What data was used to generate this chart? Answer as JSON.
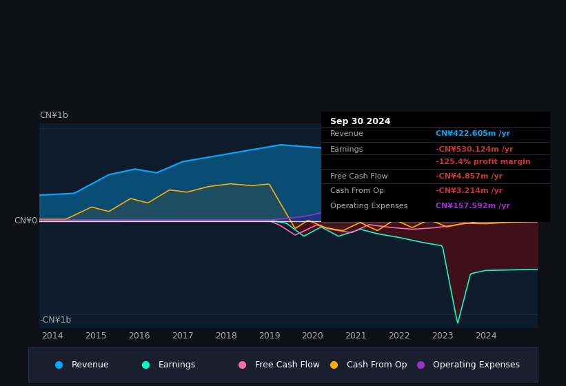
{
  "bg_color": "#0d1117",
  "plot_bg_color": "#0d1b2a",
  "title": "Sep 30 2024",
  "ylabel_top": "CN¥1b",
  "ylabel_bottom": "-CN¥1b",
  "ylabel_zero": "CN¥0",
  "colors": {
    "revenue": "#00aaff",
    "earnings": "#00ffcc",
    "free_cash_flow": "#ff69b4",
    "cash_from_op": "#ffaa00",
    "operating_expenses": "#9933cc"
  },
  "legend": [
    {
      "label": "Revenue",
      "color": "#00aaff"
    },
    {
      "label": "Earnings",
      "color": "#00ffcc"
    },
    {
      "label": "Free Cash Flow",
      "color": "#ff69b4"
    },
    {
      "label": "Cash From Op",
      "color": "#ffaa00"
    },
    {
      "label": "Operating Expenses",
      "color": "#9933cc"
    }
  ],
  "info_rows": [
    {
      "label": "Revenue",
      "value": "CN¥422.605m /yr",
      "label_color": "#aaaaaa",
      "value_color": "#00aaff"
    },
    {
      "label": "Earnings",
      "value": "-CN¥530.124m /yr",
      "label_color": "#aaaaaa",
      "value_color": "#cc3333"
    },
    {
      "label": "",
      "value": "-125.4% profit margin",
      "label_color": "#aaaaaa",
      "value_color": "#cc3333"
    },
    {
      "label": "Free Cash Flow",
      "value": "-CN¥4.857m /yr",
      "label_color": "#aaaaaa",
      "value_color": "#cc3333"
    },
    {
      "label": "Cash From Op",
      "value": "-CN¥3.214m /yr",
      "label_color": "#aaaaaa",
      "value_color": "#cc3333"
    },
    {
      "label": "Operating Expenses",
      "value": "CN¥157.592m /yr",
      "label_color": "#aaaaaa",
      "value_color": "#9933cc"
    }
  ]
}
